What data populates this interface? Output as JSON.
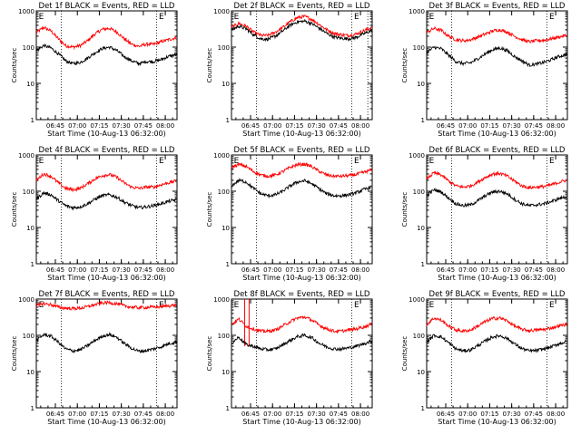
{
  "figure": {
    "xlabel": "Start Time (10-Aug-13 06:32:00)",
    "ylabel": "Counts/sec",
    "flag_label": "E"
  },
  "chart_data": [
    {
      "type": "line",
      "title": "Det 1f BLACK = Events, RED = LLD",
      "xlabel": "Start Time (10-Aug-13 06:32:00)",
      "ylabel": "Counts/sec",
      "x_ticks": [
        "06:45",
        "07:00",
        "07:15",
        "07:30",
        "07:45",
        "08:00"
      ],
      "x_tick_minutes": [
        13,
        28,
        43,
        58,
        73,
        88
      ],
      "xlim_minutes": [
        0,
        96
      ],
      "y_ticks": [
        1,
        10,
        100,
        1000
      ],
      "ylim": [
        1,
        1000
      ],
      "yscale": "log",
      "vlines_minutes": [
        17,
        82
      ],
      "flags": [
        {
          "label": "E",
          "minute": 1
        },
        {
          "label": "E",
          "minute": 83
        }
      ],
      "x_minutes": [
        0,
        5,
        10,
        15,
        20,
        25,
        30,
        35,
        40,
        45,
        50,
        55,
        60,
        65,
        70,
        75,
        80,
        85,
        90,
        95
      ],
      "series": [
        {
          "name": "LLD",
          "color": "#ff0000",
          "values": [
            250,
            350,
            280,
            170,
            110,
            100,
            110,
            150,
            230,
            310,
            330,
            260,
            170,
            120,
            105,
            120,
            120,
            140,
            160,
            180
          ]
        },
        {
          "name": "Events",
          "color": "#000000",
          "values": [
            80,
            110,
            95,
            65,
            42,
            35,
            38,
            50,
            70,
            92,
            100,
            80,
            55,
            42,
            35,
            40,
            40,
            45,
            55,
            62
          ]
        }
      ]
    },
    {
      "type": "line",
      "title": "Det 2f BLACK = Events, RED = LLD",
      "xlabel": "Start Time (10-Aug-13 06:32:00)",
      "ylabel": "Counts/sec",
      "x_ticks": [
        "06:45",
        "07:00",
        "07:15",
        "07:30",
        "07:45",
        "08:00"
      ],
      "x_tick_minutes": [
        13,
        28,
        43,
        58,
        73,
        88
      ],
      "xlim_minutes": [
        0,
        96
      ],
      "y_ticks": [
        1,
        10,
        100,
        1000
      ],
      "ylim": [
        1,
        1000
      ],
      "yscale": "log",
      "vlines_minutes": [
        17,
        82,
        93
      ],
      "flags": [
        {
          "label": "E",
          "minute": 1
        },
        {
          "label": "E",
          "minute": 83
        }
      ],
      "x_minutes": [
        0,
        5,
        10,
        15,
        20,
        25,
        30,
        35,
        40,
        45,
        50,
        55,
        60,
        65,
        70,
        75,
        80,
        85,
        90,
        95
      ],
      "series": [
        {
          "name": "LLD",
          "color": "#ff0000",
          "values": [
            350,
            450,
            380,
            260,
            210,
            210,
            260,
            350,
            500,
            650,
            700,
            580,
            420,
            300,
            240,
            220,
            210,
            230,
            280,
            340
          ]
        },
        {
          "name": "Events",
          "color": "#000000",
          "values": [
            300,
            380,
            320,
            220,
            170,
            165,
            200,
            280,
            400,
            500,
            520,
            440,
            330,
            240,
            190,
            175,
            170,
            185,
            230,
            280
          ]
        }
      ]
    },
    {
      "type": "line",
      "title": "Det 3f BLACK = Events, RED = LLD",
      "xlabel": "Start Time (10-Aug-13 06:32:00)",
      "ylabel": "Counts/sec",
      "x_ticks": [
        "06:45",
        "07:00",
        "07:15",
        "07:30",
        "07:45",
        "08:00"
      ],
      "x_tick_minutes": [
        13,
        28,
        43,
        58,
        73,
        88
      ],
      "xlim_minutes": [
        0,
        96
      ],
      "y_ticks": [
        1,
        10,
        100,
        1000
      ],
      "ylim": [
        1,
        1000
      ],
      "yscale": "log",
      "vlines_minutes": [
        17,
        82
      ],
      "flags": [
        {
          "label": "E",
          "minute": 1
        },
        {
          "label": "E",
          "minute": 83
        }
      ],
      "x_minutes": [
        0,
        5,
        10,
        15,
        20,
        25,
        30,
        35,
        40,
        45,
        50,
        55,
        60,
        65,
        70,
        75,
        80,
        85,
        90,
        95
      ],
      "series": [
        {
          "name": "LLD",
          "color": "#ff0000",
          "values": [
            250,
            330,
            290,
            200,
            160,
            150,
            160,
            190,
            230,
            280,
            300,
            260,
            200,
            160,
            140,
            150,
            155,
            170,
            190,
            210
          ]
        },
        {
          "name": "Events",
          "color": "#000000",
          "values": [
            70,
            100,
            90,
            60,
            40,
            35,
            37,
            48,
            65,
            85,
            95,
            80,
            55,
            42,
            32,
            34,
            38,
            45,
            55,
            62
          ]
        }
      ]
    },
    {
      "type": "line",
      "title": "Det 4f BLACK = Events, RED = LLD",
      "xlabel": "Start Time (10-Aug-13 06:32:00)",
      "ylabel": "Counts/sec",
      "x_ticks": [
        "06:45",
        "07:00",
        "07:15",
        "07:30",
        "07:45",
        "08:00"
      ],
      "x_tick_minutes": [
        13,
        28,
        43,
        58,
        73,
        88
      ],
      "xlim_minutes": [
        0,
        96
      ],
      "y_ticks": [
        1,
        10,
        100,
        1000
      ],
      "ylim": [
        1,
        1000
      ],
      "yscale": "log",
      "vlines_minutes": [
        17,
        82
      ],
      "flags": [
        {
          "label": "E",
          "minute": 1
        },
        {
          "label": "E",
          "minute": 83
        }
      ],
      "x_minutes": [
        0,
        5,
        10,
        15,
        20,
        25,
        30,
        35,
        40,
        45,
        50,
        55,
        60,
        65,
        70,
        75,
        80,
        85,
        90,
        95
      ],
      "series": [
        {
          "name": "LLD",
          "color": "#ff0000",
          "values": [
            200,
            300,
            260,
            170,
            120,
            110,
            120,
            160,
            220,
            270,
            290,
            240,
            170,
            130,
            120,
            130,
            130,
            150,
            170,
            190
          ]
        },
        {
          "name": "Events",
          "color": "#000000",
          "values": [
            60,
            90,
            80,
            55,
            40,
            35,
            37,
            45,
            60,
            75,
            80,
            68,
            50,
            40,
            35,
            37,
            40,
            45,
            52,
            58
          ]
        }
      ]
    },
    {
      "type": "line",
      "title": "Det 5f BLACK = Events, RED = LLD",
      "xlabel": "Start Time (10-Aug-13 06:32:00)",
      "ylabel": "Counts/sec",
      "x_ticks": [
        "06:45",
        "07:00",
        "07:15",
        "07:30",
        "07:45",
        "08:00"
      ],
      "x_tick_minutes": [
        13,
        28,
        43,
        58,
        73,
        88
      ],
      "xlim_minutes": [
        0,
        96
      ],
      "y_ticks": [
        1,
        10,
        100,
        1000
      ],
      "ylim": [
        1,
        1000
      ],
      "yscale": "log",
      "vlines_minutes": [
        17,
        82
      ],
      "flags": [
        {
          "label": "E",
          "minute": 1
        },
        {
          "label": "E",
          "minute": 83
        }
      ],
      "x_minutes": [
        0,
        5,
        10,
        15,
        20,
        25,
        30,
        35,
        40,
        45,
        50,
        55,
        60,
        65,
        70,
        75,
        80,
        85,
        90,
        95
      ],
      "series": [
        {
          "name": "LLD",
          "color": "#ff0000",
          "values": [
            450,
            550,
            480,
            350,
            280,
            260,
            280,
            350,
            450,
            540,
            560,
            470,
            350,
            280,
            260,
            260,
            270,
            290,
            330,
            380
          ]
        },
        {
          "name": "Events",
          "color": "#000000",
          "values": [
            140,
            200,
            180,
            120,
            85,
            75,
            80,
            100,
            140,
            180,
            195,
            160,
            115,
            85,
            75,
            75,
            80,
            90,
            110,
            130
          ]
        }
      ]
    },
    {
      "type": "line",
      "title": "Det 6f BLACK = Events, RED = LLD",
      "xlabel": "Start Time (10-Aug-13 06:32:00)",
      "ylabel": "Counts/sec",
      "x_ticks": [
        "06:45",
        "07:00",
        "07:15",
        "07:30",
        "07:45",
        "08:00"
      ],
      "x_tick_minutes": [
        13,
        28,
        43,
        58,
        73,
        88
      ],
      "xlim_minutes": [
        0,
        96
      ],
      "y_ticks": [
        1,
        10,
        100,
        1000
      ],
      "ylim": [
        1,
        1000
      ],
      "yscale": "log",
      "vlines_minutes": [
        17,
        82
      ],
      "flags": [
        {
          "label": "E",
          "minute": 1
        },
        {
          "label": "E",
          "minute": 83
        }
      ],
      "x_minutes": [
        0,
        5,
        10,
        15,
        20,
        25,
        30,
        35,
        40,
        45,
        50,
        55,
        60,
        65,
        70,
        75,
        80,
        85,
        90,
        95
      ],
      "series": [
        {
          "name": "LLD",
          "color": "#ff0000",
          "values": [
            220,
            320,
            280,
            190,
            140,
            130,
            140,
            180,
            240,
            300,
            310,
            260,
            190,
            140,
            125,
            130,
            135,
            150,
            175,
            200
          ]
        },
        {
          "name": "Events",
          "color": "#000000",
          "values": [
            75,
            110,
            95,
            65,
            45,
            40,
            42,
            55,
            75,
            95,
            100,
            85,
            60,
            45,
            40,
            42,
            45,
            52,
            62,
            70
          ]
        }
      ]
    },
    {
      "type": "line",
      "title": "Det 7f BLACK = Events, RED = LLD",
      "xlabel": "Start Time (10-Aug-13 06:32:00)",
      "ylabel": "Counts/sec",
      "x_ticks": [
        "06:45",
        "07:00",
        "07:15",
        "07:30",
        "07:45",
        "08:00"
      ],
      "x_tick_minutes": [
        13,
        28,
        43,
        58,
        73,
        88
      ],
      "xlim_minutes": [
        0,
        96
      ],
      "y_ticks": [
        1,
        10,
        100,
        1000
      ],
      "ylim": [
        1,
        1000
      ],
      "yscale": "log",
      "vlines_minutes": [
        17,
        82
      ],
      "flags": [
        {
          "label": "E",
          "minute": 1
        },
        {
          "label": "E",
          "minute": 83
        }
      ],
      "x_minutes": [
        0,
        5,
        10,
        15,
        20,
        25,
        30,
        35,
        40,
        45,
        50,
        55,
        60,
        65,
        70,
        75,
        80,
        85,
        90,
        95
      ],
      "series": [
        {
          "name": "LLD",
          "color": "#ff0000",
          "values": [
            650,
            750,
            700,
            600,
            560,
            550,
            560,
            620,
            700,
            780,
            800,
            740,
            650,
            600,
            580,
            590,
            600,
            620,
            650,
            680
          ]
        },
        {
          "name": "Events",
          "color": "#000000",
          "values": [
            70,
            105,
            95,
            65,
            42,
            37,
            40,
            52,
            72,
            95,
            105,
            88,
            60,
            44,
            36,
            38,
            42,
            48,
            58,
            65
          ]
        }
      ]
    },
    {
      "type": "line",
      "title": "Det 8f BLACK = Events, RED = LLD",
      "xlabel": "Start Time (10-Aug-13 06:32:00)",
      "ylabel": "Counts/sec",
      "x_ticks": [
        "06:45",
        "07:00",
        "07:15",
        "07:30",
        "07:45",
        "08:00"
      ],
      "x_tick_minutes": [
        13,
        28,
        43,
        58,
        73,
        88
      ],
      "xlim_minutes": [
        0,
        96
      ],
      "y_ticks": [
        1,
        10,
        100,
        1000
      ],
      "ylim": [
        1,
        1000
      ],
      "yscale": "log",
      "vlines_minutes": [
        17,
        82
      ],
      "flags": [
        {
          "label": "E",
          "minute": 1
        },
        {
          "label": "E",
          "minute": 83
        }
      ],
      "spikes_minutes": [
        9,
        12
      ],
      "x_minutes": [
        0,
        5,
        10,
        15,
        20,
        25,
        30,
        35,
        40,
        45,
        50,
        55,
        60,
        65,
        70,
        75,
        80,
        85,
        90,
        95
      ],
      "series": [
        {
          "name": "LLD",
          "color": "#ff0000",
          "values": [
            200,
            280,
            180,
            150,
            130,
            130,
            140,
            180,
            240,
            300,
            320,
            260,
            190,
            150,
            130,
            130,
            140,
            150,
            170,
            200
          ]
        },
        {
          "name": "Events",
          "color": "#000000",
          "values": [
            60,
            90,
            55,
            50,
            42,
            40,
            42,
            55,
            72,
            92,
            100,
            85,
            60,
            48,
            42,
            42,
            45,
            50,
            58,
            68
          ]
        }
      ]
    },
    {
      "type": "line",
      "title": "Det 9f BLACK = Events, RED = LLD",
      "xlabel": "Start Time (10-Aug-13 06:32:00)",
      "ylabel": "Counts/sec",
      "x_ticks": [
        "06:45",
        "07:00",
        "07:15",
        "07:30",
        "07:45",
        "08:00"
      ],
      "x_tick_minutes": [
        13,
        28,
        43,
        58,
        73,
        88
      ],
      "xlim_minutes": [
        0,
        96
      ],
      "y_ticks": [
        1,
        10,
        100,
        1000
      ],
      "ylim": [
        1,
        1000
      ],
      "yscale": "log",
      "vlines_minutes": [
        17,
        82
      ],
      "flags": [
        {
          "label": "E",
          "minute": 1
        },
        {
          "label": "E",
          "minute": 83
        }
      ],
      "x_minutes": [
        0,
        5,
        10,
        15,
        20,
        25,
        30,
        35,
        40,
        45,
        50,
        55,
        60,
        65,
        70,
        75,
        80,
        85,
        90,
        95
      ],
      "series": [
        {
          "name": "LLD",
          "color": "#ff0000",
          "values": [
            200,
            300,
            260,
            180,
            140,
            130,
            140,
            180,
            240,
            290,
            300,
            250,
            180,
            145,
            135,
            140,
            145,
            160,
            180,
            200
          ]
        },
        {
          "name": "Events",
          "color": "#000000",
          "values": [
            65,
            100,
            90,
            62,
            42,
            37,
            40,
            52,
            70,
            90,
            98,
            82,
            58,
            43,
            37,
            38,
            42,
            48,
            58,
            66
          ]
        }
      ]
    }
  ]
}
